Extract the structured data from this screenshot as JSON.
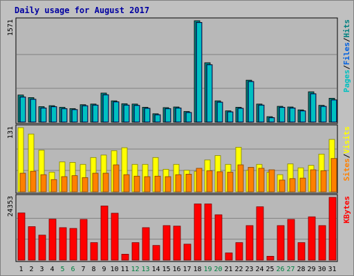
{
  "title": "Daily usage for August 2017",
  "colors": {
    "background": "#c0c0c0",
    "panel": "#b8b8b8",
    "title": "#0000a0",
    "pages": "#00c0c0",
    "files": "#0060e0",
    "hits": "#008080",
    "sites": "#ff8000",
    "visits": "#ffff00",
    "kbytes": "#ff0000",
    "weekend_label": "#008040"
  },
  "chart_data": [
    {
      "type": "bar",
      "panel": "top",
      "max_label": "1571",
      "ylim": [
        0,
        1571
      ],
      "categories": [
        "1",
        "2",
        "3",
        "4",
        "5",
        "6",
        "7",
        "8",
        "9",
        "10",
        "11",
        "12",
        "13",
        "14",
        "15",
        "16",
        "17",
        "18",
        "19",
        "20",
        "21",
        "22",
        "23",
        "24",
        "25",
        "26",
        "27",
        "28",
        "29",
        "30",
        "31"
      ],
      "legend": [
        {
          "text": "Pages",
          "color_key": "pages"
        },
        {
          "text": "/",
          "color_key": "sep"
        },
        {
          "text": "Files",
          "color_key": "files"
        },
        {
          "text": "/",
          "color_key": "sep"
        },
        {
          "text": "Hits",
          "color_key": "hits"
        }
      ],
      "series": [
        {
          "name": "Hits",
          "values": [
            420,
            380,
            240,
            255,
            230,
            210,
            270,
            280,
            450,
            330,
            285,
            280,
            230,
            130,
            225,
            235,
            165,
            1571,
            920,
            330,
            175,
            230,
            650,
            280,
            85,
            245,
            235,
            190,
            470,
            260,
            370
          ]
        },
        {
          "name": "Files",
          "values": [
            390,
            355,
            220,
            240,
            210,
            195,
            255,
            265,
            425,
            315,
            265,
            260,
            215,
            115,
            210,
            220,
            150,
            1545,
            890,
            310,
            160,
            215,
            630,
            265,
            70,
            230,
            220,
            175,
            440,
            245,
            345
          ]
        }
      ]
    },
    {
      "type": "bar",
      "panel": "middle",
      "max_label": "131",
      "ylim": [
        0,
        131
      ],
      "categories": [
        "1",
        "2",
        "3",
        "4",
        "5",
        "6",
        "7",
        "8",
        "9",
        "10",
        "11",
        "12",
        "13",
        "14",
        "15",
        "16",
        "17",
        "18",
        "19",
        "20",
        "21",
        "22",
        "23",
        "24",
        "25",
        "26",
        "27",
        "28",
        "29",
        "30",
        "31"
      ],
      "legend": [
        {
          "text": "Sites",
          "color_key": "sites"
        },
        {
          "text": "/",
          "color_key": "sep"
        },
        {
          "text": "Visits",
          "color_key": "visits"
        }
      ],
      "series": [
        {
          "name": "Visits",
          "values": [
            131,
            118,
            85,
            40,
            61,
            60,
            56,
            70,
            75,
            84,
            90,
            56,
            56,
            70,
            46,
            56,
            44,
            42,
            65,
            74,
            56,
            91,
            44,
            56,
            40,
            35,
            57,
            49,
            54,
            77,
            107
          ]
        },
        {
          "name": "Sites",
          "values": [
            38,
            42,
            35,
            25,
            31,
            33,
            29,
            38,
            38,
            55,
            35,
            32,
            31,
            32,
            31,
            35,
            36,
            48,
            43,
            41,
            40,
            55,
            50,
            48,
            45,
            24,
            27,
            28,
            45,
            43,
            68
          ]
        }
      ]
    },
    {
      "type": "bar",
      "panel": "bottom",
      "max_label": "24353",
      "ylim": [
        0,
        24353
      ],
      "categories": [
        "1",
        "2",
        "3",
        "4",
        "5",
        "6",
        "7",
        "8",
        "9",
        "10",
        "11",
        "12",
        "13",
        "14",
        "15",
        "16",
        "17",
        "18",
        "19",
        "20",
        "21",
        "22",
        "23",
        "24",
        "25",
        "26",
        "27",
        "28",
        "29",
        "30",
        "31"
      ],
      "legend": [
        {
          "text": "KBytes",
          "color_key": "kbytes"
        }
      ],
      "series": [
        {
          "name": "KBytes",
          "values": [
            18300,
            13000,
            9700,
            15900,
            12600,
            12300,
            15800,
            6800,
            21000,
            18200,
            2300,
            6800,
            12600,
            5700,
            13400,
            13200,
            6200,
            21800,
            21800,
            17600,
            2800,
            6800,
            13400,
            20700,
            1500,
            13400,
            15800,
            6800,
            16800,
            13400,
            24353
          ]
        }
      ]
    }
  ],
  "x_labels": [
    {
      "text": "1",
      "weekend": false
    },
    {
      "text": "2",
      "weekend": false
    },
    {
      "text": "3",
      "weekend": false
    },
    {
      "text": "4",
      "weekend": false
    },
    {
      "text": "5",
      "weekend": true
    },
    {
      "text": "6",
      "weekend": true
    },
    {
      "text": "7",
      "weekend": false
    },
    {
      "text": "8",
      "weekend": false
    },
    {
      "text": "9",
      "weekend": false
    },
    {
      "text": "10",
      "weekend": false
    },
    {
      "text": "11",
      "weekend": false
    },
    {
      "text": "12",
      "weekend": true
    },
    {
      "text": "13",
      "weekend": true
    },
    {
      "text": "14",
      "weekend": false
    },
    {
      "text": "15",
      "weekend": false
    },
    {
      "text": "16",
      "weekend": false
    },
    {
      "text": "17",
      "weekend": false
    },
    {
      "text": "18",
      "weekend": false
    },
    {
      "text": "19",
      "weekend": true
    },
    {
      "text": "20",
      "weekend": true
    },
    {
      "text": "21",
      "weekend": false
    },
    {
      "text": "22",
      "weekend": false
    },
    {
      "text": "23",
      "weekend": false
    },
    {
      "text": "24",
      "weekend": false
    },
    {
      "text": "25",
      "weekend": false
    },
    {
      "text": "26",
      "weekend": true
    },
    {
      "text": "27",
      "weekend": true
    },
    {
      "text": "28",
      "weekend": false
    },
    {
      "text": "29",
      "weekend": false
    },
    {
      "text": "30",
      "weekend": false
    },
    {
      "text": "31",
      "weekend": false
    }
  ]
}
